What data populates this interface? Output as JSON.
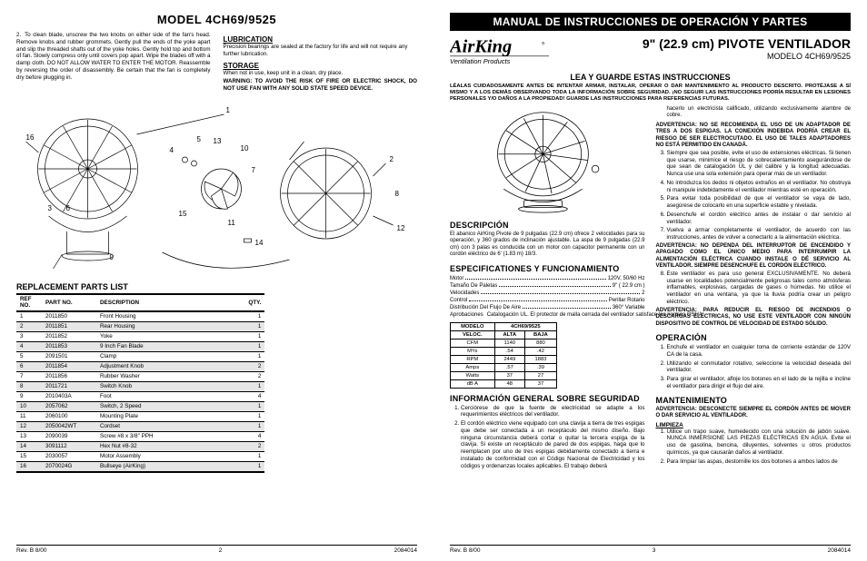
{
  "left": {
    "header": "MODEL 4CH69/9525",
    "cleaning_item_number": "2.",
    "cleaning_text": "To clean blade, unscrew the two knobs on either side of the fan's head. Remove knobs and rubber grommets. Gently pull the ends of the yoke apart and slip the threaded shafts out of the yoke holes. Gently hold top and bottom of fan. Slowly compress only until covers pop apart. Wipe the blades off with a damp cloth. DO NOT ALLOW WATER TO ENTER THE MOTOR. Reassemble by reversing the order of disassembly. Be certain that the fan is completely dry before plugging in.",
    "lubrication_head": "LUBRICATION",
    "lubrication_text": "Precision bearings are sealed at the factory for life and will not require any further lubrication.",
    "storage_head": "STORAGE",
    "storage_text": "When not in use, keep unit in a clean, dry place.",
    "warning_text": "WARNING: TO AVOID THE RISK OF FIRE OR ELECTRIC SHOCK, DO NOT USE FAN WITH ANY SOLID STATE SPEED DEVICE.",
    "diagram_labels": [
      "1",
      "2",
      "3",
      "4",
      "5",
      "6",
      "7",
      "8",
      "9",
      "10",
      "11",
      "12",
      "13",
      "14",
      "15",
      "16"
    ],
    "parts_title": "REPLACEMENT PARTS LIST",
    "parts_headers": {
      "ref": "REF NO.",
      "pn": "PART NO.",
      "desc": "DESCRIPTION",
      "qty": "QTY."
    },
    "parts": [
      {
        "ref": "1",
        "pn": "2011850",
        "desc": "Front Housing",
        "qty": "1"
      },
      {
        "ref": "2",
        "pn": "2011851",
        "desc": "Rear Housing",
        "qty": "1"
      },
      {
        "ref": "3",
        "pn": "2011852",
        "desc": "Yoke",
        "qty": "1"
      },
      {
        "ref": "4",
        "pn": "2011853",
        "desc": "9 Inch Fan Blade",
        "qty": "1"
      },
      {
        "ref": "5",
        "pn": "2091501",
        "desc": "Clamp",
        "qty": "1"
      },
      {
        "ref": "6",
        "pn": "2011854",
        "desc": "Adjustment Knob",
        "qty": "2"
      },
      {
        "ref": "7",
        "pn": "2011856",
        "desc": "Rubber Washer",
        "qty": "2"
      },
      {
        "ref": "8",
        "pn": "2011721",
        "desc": "Switch Knob",
        "qty": "1"
      },
      {
        "ref": "9",
        "pn": "2010403A",
        "desc": "Foot",
        "qty": "4"
      },
      {
        "ref": "10",
        "pn": "2057062",
        "desc": "Switch, 2 Speed",
        "qty": "1"
      },
      {
        "ref": "11",
        "pn": "2060100",
        "desc": "Mounting Plate",
        "qty": "1"
      },
      {
        "ref": "12",
        "pn": "2050042WT",
        "desc": "Cordset",
        "qty": "1"
      },
      {
        "ref": "13",
        "pn": "2090039",
        "desc": "Screw #8 x 3/8\" PPH",
        "qty": "4"
      },
      {
        "ref": "14",
        "pn": "3091112",
        "desc": "Hex Nut #8-32",
        "qty": "2"
      },
      {
        "ref": "15",
        "pn": "2030057",
        "desc": "Motor Assembly",
        "qty": "1"
      },
      {
        "ref": "16",
        "pn": "2070024G",
        "desc": "Bullseye (AirKing)",
        "qty": "1"
      }
    ],
    "footer": {
      "rev": "Rev. B 8/00",
      "page": "2",
      "doc": "2084014"
    }
  },
  "right": {
    "banner": "MANUAL DE INSTRUCCIONES DE OPERACIÓN Y PARTES",
    "brand_top": "AirKing",
    "brand_sub": "Ventilation Products",
    "main_title": "9\" (22.9 cm) PIVOTE VENTILADOR",
    "sub_title": "MODELO 4CH69/9525",
    "read_save": "LEA Y GUARDE ESTAS INSTRUCCIONES",
    "warn_block": "LÉALAS CUIDADOSAMENTE ANTES DE INTENTAR ARMAR, INSTALAR, OPERAR O DAR MANTENIMIENTO AL PRODUCTO DESCRITO. PROTÉJASE A SÍ MISMO Y A LOS DEMÁS OBSERVANDO TODA LA INFORMACIÓN SOBRE SEGURIDAD. ¡NO SEGUIR LAS INSTRUCCIONES PODRÍA RESULTAR EN LESIONES PERSONALES Y/O DAÑOS A LA PROPIEDAD! GUARDE LAS INSTRUCCIONES PARA REFERENCIAS FUTURAS.",
    "descripcion_head": "DESCRIPCIÓN",
    "descripcion_text": "El abanico AirKing Pivote de 9 pulgadas (22.9 cm) ofrece 2 velocidades para su operación, y 360 grados de inclinación ajustable. La aspa de 9 pulgadas (22.9 cm) con 3 palas es conducida con un motor con capacitor permanente con un cordón eléctrico de 6' (1.83 m) 18/3.",
    "espec_head": "ESPECIFICATIONES Y FUNCIONAMIENTO",
    "specs": [
      {
        "label": "Motor",
        "value": "120V, 50/60 Hz"
      },
      {
        "label": "Tamaño De Paletas",
        "value": "9\" ( 22.9 cm )"
      },
      {
        "label": "Velocidades",
        "value": "2"
      },
      {
        "label": "Control",
        "value": "Perillar Rotario"
      },
      {
        "label": "Distribución Del Flujo De Aire",
        "value": "360° Variable"
      },
      {
        "label": "Aprobaciones",
        "value": "Catalogación UL. El protector de malla cerrada del ventilador satisface las normas OSHA."
      }
    ],
    "perf_headers": {
      "model": "MODELO",
      "modelval": "4CH69/9525",
      "speed": "VELOC.",
      "high": "ALTA",
      "low": "BAJA"
    },
    "perf_rows": [
      {
        "k": "CFM",
        "h": "1140",
        "l": "880"
      },
      {
        "k": "M³/s",
        "h": ".54",
        "l": ".42"
      },
      {
        "k": "RPM",
        "h": "2449",
        "l": "1883"
      },
      {
        "k": "Amps",
        "h": ".57",
        "l": ".39"
      },
      {
        "k": "Watts",
        "h": "37",
        "l": "27"
      },
      {
        "k": "dB A",
        "h": "48",
        "l": "37"
      }
    ],
    "info_head": "INFORMACIÓN GENERAL SOBRE SEGURIDAD",
    "info_items": [
      "Cerciórese de que la fuente de electricidad se adapte a los requerimientos eléctricos del ventilador.",
      "El cordón eléctrico viene equipado con una clavija a tierra de tres espigas que debe ser conectada a un receptáculo del mismo diseño. Bajo ninguna circunstancia deberá cortar o quitar la tercera espiga de la clavija. Si existe un receptáculo de pared de dos espigas, haga que lo reemplacen por uno de tres espigas debidamente conectado a tierra e instalado de conformidad con el Código Nacional de Electricidad y los códigos y ordenanzas locales aplicables. El trabajo deberá"
    ],
    "col2_top": "hacerlo un electricista calificado, utilizando exclusivamente alambre de cobre.",
    "adv1": "ADVERTENCIA: NO SE RECOMIENDA EL USO DE UN ADAPTADOR DE TRES A DOS ESPIGAS. LA CONEXIÓN INDEBIDA PODRÍA CREAR EL RIESGO DE SER ELECTROCUTADO. EL USO DE TALES ADAPTADORES NO ESTÁ PERMITIDO EN CANADÁ.",
    "safety_items": [
      "Siempre que sea posible, evite el uso de extensiones eléctricas. Si tienen que usarse, minimice el riesgo de sobrecalentamiento asegurándose de que sean de catalogación UL y del calibre y la longitud adecuadas. Nunca use una sola extensión para operar más de un ventilador.",
      "No introduzca los dedos ni objetos extraños en el ventilador. No obstruya ni manipule indebidamente el ventilador mientras esté en operación.",
      "Para evitar toda posibilidad de que el ventilador se vaya de lado, asegúrese de colocarlo en una superficie estable y nivelada.",
      "Desenchufe el cordón eléctrico antes de instalar o dar servicio al ventilador.",
      "Vuelva a armar completamente el ventilador, de acuerdo con las instrucciones, antes de volver a conectarlo a la alimentación eléctrica."
    ],
    "adv2": "ADVERTENCIA: NO DEPENDA DEL INTERRUPTOR DE ENCENDIDO Y APAGADO COMO EL ÚNICO MEDIO PARA INTERRUMPIR LA ALIMENTACIÓN ELÉCTRICA CUANDO INSTALE O DÉ SERVICIO AL VENTILADOR. SIEMPRE DESENCHUFE EL CORDÓN ELÉCTRICO.",
    "item8": "Este ventilador es para uso general EXCLUSIVAMENTE. No deberá usarse en localidades potencialmente peligrosas tales como atmósferas inflamables, explosivas, cargadas de gases o húmedas. No utilice el ventilador en una ventana, ya que la lluvia podría crear un peligro eléctrico.",
    "adv3": "ADVERTENCIA: PARA REDUCIR EL RIESGO DE INCENDIOS O DESCARGAS ELÉCTRICAS, NO USE ESTE VENTILADOR CON NINGÚN DISPOSITIVO DE CONTROL DE VELOCIDAD DE ESTADO SÓLIDO.",
    "oper_head": "OPERACIÓN",
    "oper_items": [
      "Enchufe el ventilador en cualquier toma de corriente estándar de 120V CA de la casa.",
      "Utilizando el conmutador rotativo, seleccione la velocidad deseada del ventilador.",
      "Para girar el ventilador, afloje los botones en el lado de la rejilla e incline el ventilador para dirigir el flujo del aire."
    ],
    "mant_head": "MANTENIMIENTO",
    "mant_warn": "ADVERTENCIA: DESCONECTE SIEMPRE EL CORDÓN ANTES DE MOVER O DAR SERVICIO AL VENTILADOR.",
    "limp_head": "LIMPIEZA",
    "limp_items": [
      "Utilice un trapo suave, humedecido con una solución de jabón suave. NUNCA INMERSIONE LAS PIEZAS ELÉCTRICAS EN AGUA. Evite el uso de gasolina, bencina, diluyentes, solventes u otros productos químicos, ya que causarán daños al ventilador.",
      "Para limpiar las aspas, destornille los dos botones a ambos lados de"
    ],
    "footer": {
      "rev": "Rev. B 8/00",
      "page": "3",
      "doc": "2084014"
    }
  }
}
